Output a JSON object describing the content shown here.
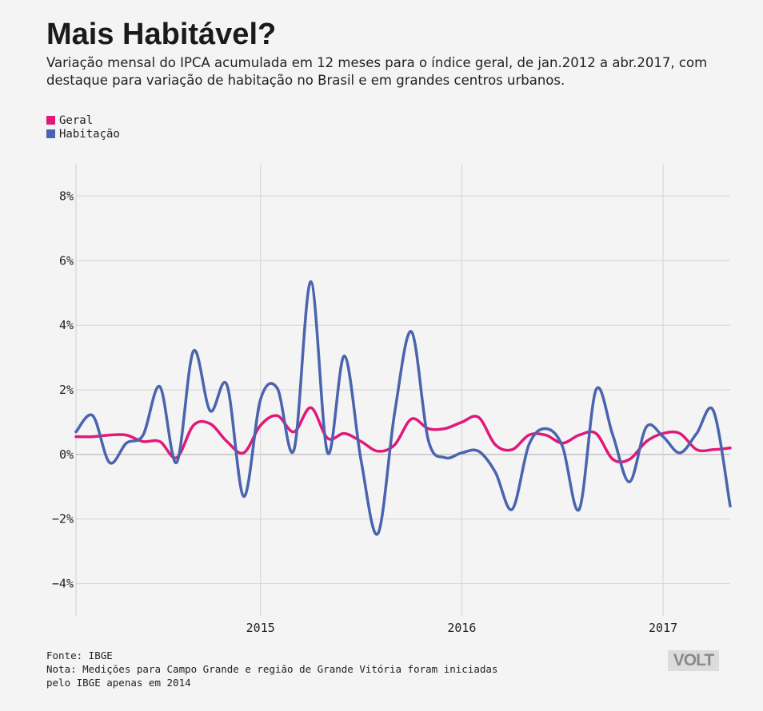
{
  "title": "Mais Habitável?",
  "subtitle": "Variação mensal do IPCA acumulada em 12 meses para o índice geral, de jan.2012 a abr.2017, com destaque para variação de habitação no Brasil e em grandes centros urbanos.",
  "footer": {
    "source": "Fonte: IBGE",
    "note_line1": "Nota: Medições para Campo Grande e região de Grande Vitória foram iniciadas",
    "note_line2": "pelo IBGE apenas em 2014"
  },
  "logo_text": "VOLT",
  "colors": {
    "background": "#f4f4f4",
    "geral": "#e0197a",
    "habitacao": "#4a64ae",
    "grid": "#d4d4d4",
    "zero_line": "#aaaaaa"
  },
  "chart_data": {
    "type": "line",
    "title": "",
    "xlabel": "",
    "ylabel": "",
    "x": [
      "2014-02",
      "2014-03",
      "2014-04",
      "2014-05",
      "2014-06",
      "2014-07",
      "2014-08",
      "2014-09",
      "2014-10",
      "2014-11",
      "2014-12",
      "2015-01",
      "2015-02",
      "2015-03",
      "2015-04",
      "2015-05",
      "2015-06",
      "2015-07",
      "2015-08",
      "2015-09",
      "2015-10",
      "2015-11",
      "2015-12",
      "2016-01",
      "2016-02",
      "2016-03",
      "2016-04",
      "2016-05",
      "2016-06",
      "2016-07",
      "2016-08",
      "2016-09",
      "2016-10",
      "2016-11",
      "2016-12",
      "2017-01",
      "2017-02",
      "2017-03",
      "2017-04",
      "2017-05"
    ],
    "xlim": [
      "2014-02",
      "2017-05"
    ],
    "x_ticks": [
      "2015",
      "2016",
      "2017"
    ],
    "ylim": [
      -5,
      9
    ],
    "y_ticks": [
      8,
      6,
      4,
      2,
      0,
      -2,
      -4
    ],
    "y_tick_labels": [
      "8%",
      "6%",
      "4%",
      "2%",
      "0%",
      "−2%",
      "−4%"
    ],
    "grid": true,
    "legend_position": "top-left",
    "series": [
      {
        "name": "Geral",
        "color": "#e0197a",
        "values": [
          0.55,
          0.55,
          0.6,
          0.6,
          0.4,
          0.4,
          -0.1,
          0.9,
          0.95,
          0.4,
          0.05,
          0.9,
          1.2,
          0.7,
          1.45,
          0.5,
          0.65,
          0.4,
          0.1,
          0.3,
          1.1,
          0.8,
          0.8,
          1.0,
          1.15,
          0.3,
          0.15,
          0.6,
          0.6,
          0.35,
          0.6,
          0.65,
          -0.15,
          -0.15,
          0.4,
          0.65,
          0.65,
          0.15,
          0.15,
          0.2
        ]
      },
      {
        "name": "Habitação",
        "color": "#4a64ae",
        "values": [
          0.7,
          1.2,
          -0.25,
          0.35,
          0.6,
          2.1,
          -0.25,
          3.2,
          1.35,
          2.15,
          -1.3,
          1.7,
          2.05,
          0.15,
          5.35,
          0.05,
          3.05,
          -0.2,
          -2.45,
          1.3,
          3.8,
          0.45,
          -0.1,
          0.05,
          0.1,
          -0.55,
          -1.7,
          0.3,
          0.8,
          0.25,
          -1.7,
          2.0,
          0.6,
          -0.85,
          0.85,
          0.55,
          0.05,
          0.65,
          1.35,
          -1.6
        ]
      }
    ]
  }
}
